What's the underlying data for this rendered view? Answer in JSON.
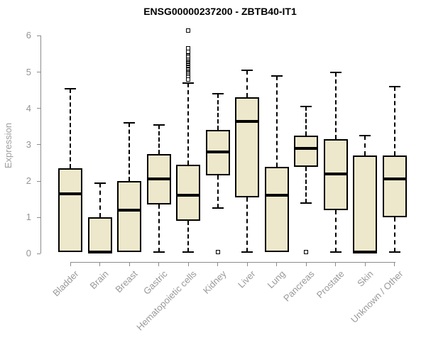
{
  "title": "ENSG00000237200 - ZBTB40-IT1",
  "chart_data": {
    "type": "boxplot",
    "title": "ENSG00000237200 - ZBTB40-IT1",
    "xlabel": "",
    "ylabel": "Expression",
    "ylim": [
      0,
      6.3
    ],
    "yticks": [
      0,
      1,
      2,
      3,
      4,
      5,
      6
    ],
    "grid": false,
    "legend": "none",
    "colors": {
      "box_fill": "#EDE8CB",
      "box_stroke": "#000000",
      "median": "#000000",
      "whisker": "#000000",
      "axis": "#8C8C8C",
      "tick_text": "#999999",
      "title_text": "#000000"
    },
    "categories": [
      "Bladder",
      "Brain",
      "Breast",
      "Gastric",
      "Hematopoietic cells",
      "Kidney",
      "Liver",
      "Lung",
      "Pancreas",
      "Prostate",
      "Skin",
      "Unknown / Other"
    ],
    "series": [
      {
        "category": "Bladder",
        "whisker_low": 0.05,
        "q1": 0.05,
        "median": 1.65,
        "q3": 2.35,
        "whisker_high": 4.55,
        "outliers": []
      },
      {
        "category": "Brain",
        "whisker_low": 0.0,
        "q1": 0.0,
        "median": 0.05,
        "q3": 1.0,
        "whisker_high": 1.95,
        "outliers": []
      },
      {
        "category": "Breast",
        "whisker_low": 0.05,
        "q1": 0.05,
        "median": 1.2,
        "q3": 2.0,
        "whisker_high": 3.6,
        "outliers": []
      },
      {
        "category": "Gastric",
        "whisker_low": 0.05,
        "q1": 1.35,
        "median": 2.05,
        "q3": 2.75,
        "whisker_high": 3.55,
        "outliers": []
      },
      {
        "category": "Hematopoietic cells",
        "whisker_low": 0.05,
        "q1": 0.9,
        "median": 1.6,
        "q3": 2.45,
        "whisker_high": 4.7,
        "outliers": [
          6.15,
          5.65,
          5.55,
          5.45,
          5.4,
          5.35,
          5.3,
          5.27,
          5.24,
          5.21,
          5.18,
          5.15,
          5.12,
          5.09,
          5.06,
          5.03,
          5.0,
          4.97,
          4.94,
          4.9,
          4.85,
          4.8
        ]
      },
      {
        "category": "Kidney",
        "whisker_low": 1.25,
        "q1": 2.15,
        "median": 2.8,
        "q3": 3.4,
        "whisker_high": 4.4,
        "outliers": [
          0.05
        ]
      },
      {
        "category": "Liver",
        "whisker_low": 0.05,
        "q1": 1.55,
        "median": 3.65,
        "q3": 4.3,
        "whisker_high": 5.05,
        "outliers": []
      },
      {
        "category": "Lung",
        "whisker_low": 0.05,
        "q1": 0.05,
        "median": 1.6,
        "q3": 2.4,
        "whisker_high": 4.9,
        "outliers": []
      },
      {
        "category": "Pancreas",
        "whisker_low": 1.4,
        "q1": 2.4,
        "median": 2.9,
        "q3": 3.25,
        "whisker_high": 4.05,
        "outliers": [
          0.05
        ]
      },
      {
        "category": "Prostate",
        "whisker_low": 0.05,
        "q1": 1.2,
        "median": 2.2,
        "q3": 3.15,
        "whisker_high": 5.0,
        "outliers": []
      },
      {
        "category": "Skin",
        "whisker_low": 0.0,
        "q1": 0.0,
        "median": 0.05,
        "q3": 2.7,
        "whisker_high": 3.25,
        "outliers": []
      },
      {
        "category": "Unknown / Other",
        "whisker_low": 0.05,
        "q1": 1.0,
        "median": 2.05,
        "q3": 2.7,
        "whisker_high": 4.6,
        "outliers": []
      }
    ]
  }
}
